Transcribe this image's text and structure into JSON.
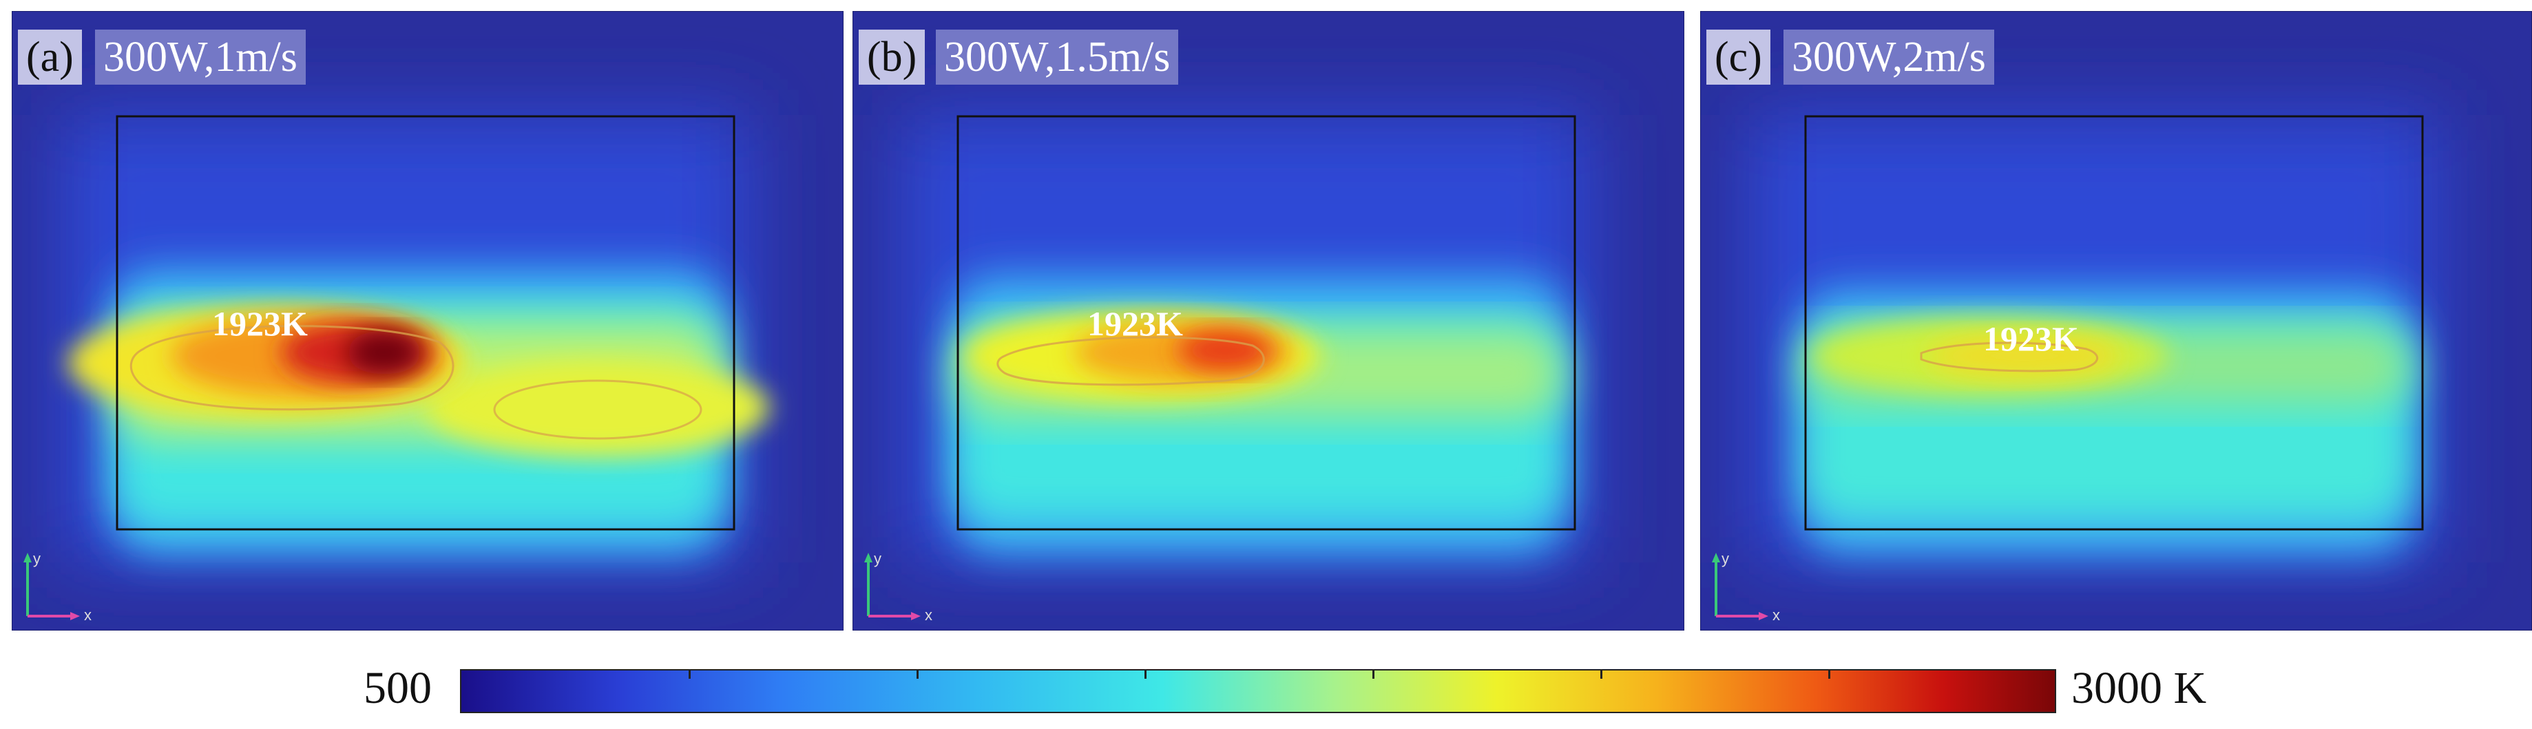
{
  "panels": [
    {
      "letter": "(a)",
      "condition": "300W,1m/s",
      "isotherm_label": "1923K"
    },
    {
      "letter": "(b)",
      "condition": "300W,1.5m/s",
      "isotherm_label": "1923K"
    },
    {
      "letter": "(c)",
      "condition": "300W,2m/s",
      "isotherm_label": "1923K"
    }
  ],
  "axis_triad": {
    "y_label": "y",
    "x_label": "x"
  },
  "colorbar": {
    "min_label": "500",
    "max_label": "3000 K",
    "min_value": 500,
    "max_value": 3000,
    "colormap": "jet"
  },
  "colors": {
    "background": "#2a2f9e",
    "label_box_light": "#c3c4e6",
    "label_box_dark": "#7478c6"
  }
}
